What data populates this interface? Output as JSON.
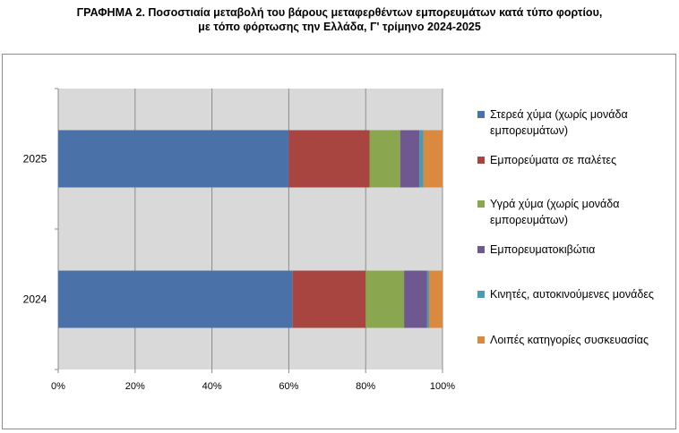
{
  "title_line1": "ΓΡΑΦΗΜΑ 2. Ποσοστιαία μεταβολή του βάρους μεταφερθέντων εμπορευμάτων κατά τύπο φορτίου,",
  "title_line2": "με τόπο φόρτωσης την Ελλάδα, Γ' τρίμηνο 2024-2025",
  "chart_data": {
    "type": "bar",
    "orientation": "horizontal",
    "stacked": "percent",
    "title": "ΓΡΑΦΗΜΑ 2. Ποσοστιαία μεταβολή του βάρους μεταφερθέντων εμπορευμάτων κατά τύπο φορτίου, με τόπο φόρτωσης την Ελλάδα, Γ' τρίμηνο 2024-2025",
    "categories": [
      "2025",
      "2024"
    ],
    "x_ticks": [
      "0%",
      "20%",
      "40%",
      "60%",
      "80%",
      "100%"
    ],
    "xlim": [
      0,
      100
    ],
    "grid": true,
    "legend_position": "right",
    "series": [
      {
        "name": "Στερεά χύμα (χωρίς μονάδα εμπορευμάτων)",
        "color": "#4a71a8",
        "values": [
          60,
          61
        ]
      },
      {
        "name": "Εμπορεύματα σε παλέτες",
        "color": "#a94541",
        "values": [
          21,
          19
        ]
      },
      {
        "name": "Υγρά χύμα (χωρίς μονάδα εμπορευμάτων)",
        "color": "#8aa64e",
        "values": [
          8,
          10
        ]
      },
      {
        "name": "Εμπορευματοκιβώτια",
        "color": "#6f578f",
        "values": [
          5,
          6
        ]
      },
      {
        "name": "Κινητές, αυτοκινούμενες μονάδες",
        "color": "#4a9ab3",
        "values": [
          1,
          0.5
        ]
      },
      {
        "name": "Λοιπές κατηγορίες συσκευασίας",
        "color": "#d98a3f",
        "values": [
          5,
          3.5
        ]
      }
    ]
  }
}
